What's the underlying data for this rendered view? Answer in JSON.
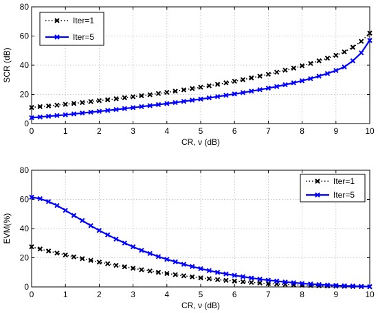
{
  "chart_data": [
    {
      "type": "line",
      "xlabel": "CR, ν (dB)",
      "ylabel": "SCR (dB)",
      "xlim": [
        0,
        10
      ],
      "ylim": [
        0,
        80
      ],
      "xticks": [
        "0",
        "1",
        "2",
        "3",
        "4",
        "5",
        "6",
        "7",
        "8",
        "9",
        "10"
      ],
      "yticks": [
        "0",
        "20",
        "40",
        "60",
        "80"
      ],
      "grid": true,
      "legend_position": "top-left",
      "x": [
        0,
        0.25,
        0.5,
        0.75,
        1,
        1.25,
        1.5,
        1.75,
        2,
        2.25,
        2.5,
        2.75,
        3,
        3.25,
        3.5,
        3.75,
        4,
        4.25,
        4.5,
        4.75,
        5,
        5.25,
        5.5,
        5.75,
        6,
        6.25,
        6.5,
        6.75,
        7,
        7.25,
        7.5,
        7.75,
        8,
        8.25,
        8.5,
        8.75,
        9,
        9.25,
        9.5,
        9.75,
        10
      ],
      "series": [
        {
          "name": "Iter=1",
          "color": "#000000",
          "line_style": "dotted",
          "marker": "x",
          "values": [
            11,
            11.6,
            12.1,
            12.6,
            13.2,
            13.8,
            14.4,
            15.1,
            15.7,
            16.3,
            17,
            17.7,
            18.4,
            19.1,
            19.8,
            20.6,
            21.4,
            22.2,
            23.1,
            24,
            24.9,
            25.9,
            26.9,
            27.9,
            29,
            30.1,
            31.3,
            32.5,
            33.8,
            35.2,
            36.6,
            38,
            39.6,
            41.2,
            43,
            44.8,
            46.8,
            49.1,
            52.3,
            56.4,
            62
          ]
        },
        {
          "name": "Iter=5",
          "color": "#0000ff",
          "line_style": "solid",
          "marker": "x",
          "values": [
            4,
            4.5,
            5,
            5.5,
            6,
            6.6,
            7.2,
            7.8,
            8.4,
            9,
            9.6,
            10.3,
            10.9,
            11.6,
            12.3,
            13,
            13.7,
            14.4,
            15.2,
            16,
            16.8,
            17.6,
            18.5,
            19.4,
            20.3,
            21.2,
            22.2,
            23.2,
            24.3,
            25.4,
            26.6,
            27.9,
            29.3,
            30.8,
            32.5,
            34.3,
            36.4,
            38.8,
            43,
            48.5,
            57
          ]
        }
      ]
    },
    {
      "type": "line",
      "xlabel": "CR, ν (dB)",
      "ylabel": "EVM(%)",
      "xlim": [
        0,
        10
      ],
      "ylim": [
        0,
        80
      ],
      "xticks": [
        "0",
        "1",
        "2",
        "3",
        "4",
        "5",
        "6",
        "7",
        "8",
        "9",
        "10"
      ],
      "yticks": [
        "0",
        "20",
        "40",
        "60",
        "80"
      ],
      "grid": true,
      "legend_position": "top-right",
      "x": [
        0,
        0.25,
        0.5,
        0.75,
        1,
        1.25,
        1.5,
        1.75,
        2,
        2.25,
        2.5,
        2.75,
        3,
        3.25,
        3.5,
        3.75,
        4,
        4.25,
        4.5,
        4.75,
        5,
        5.25,
        5.5,
        5.75,
        6,
        6.25,
        6.5,
        6.75,
        7,
        7.25,
        7.5,
        7.75,
        8,
        8.25,
        8.5,
        8.75,
        9,
        9.25,
        9.5,
        9.75,
        10
      ],
      "series": [
        {
          "name": "Iter=1",
          "color": "#000000",
          "line_style": "dotted",
          "marker": "x",
          "values": [
            27.5,
            26,
            24.6,
            23.2,
            21.9,
            20.6,
            19.4,
            18.2,
            17,
            15.9,
            14.8,
            13.8,
            12.8,
            11.8,
            10.9,
            10,
            9.2,
            8.4,
            7.6,
            6.9,
            6.2,
            5.6,
            5,
            4.5,
            4,
            3.5,
            3.1,
            2.7,
            2.3,
            2,
            1.7,
            1.4,
            1.2,
            1,
            0.8,
            0.6,
            0.5,
            0.4,
            0.3,
            0.2,
            0.1
          ]
        },
        {
          "name": "Iter=5",
          "color": "#0000ff",
          "line_style": "solid",
          "marker": "x",
          "values": [
            61.5,
            60.5,
            58.5,
            55.8,
            52.5,
            49,
            45.5,
            42,
            38.7,
            35.7,
            32.8,
            30.1,
            27.5,
            25.1,
            22.9,
            20.8,
            18.9,
            17.2,
            15.5,
            14,
            12.5,
            11.2,
            10,
            8.9,
            7.9,
            7,
            6.1,
            5.3,
            4.6,
            4,
            3.4,
            2.9,
            2.4,
            2,
            1.6,
            1.3,
            1,
            0.8,
            0.6,
            0.4,
            0.2
          ]
        }
      ]
    }
  ]
}
